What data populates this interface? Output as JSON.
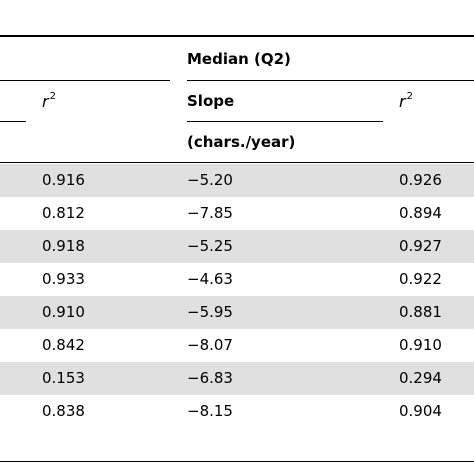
{
  "table": {
    "group_header": "Median (Q2)",
    "col_r2_left": "r",
    "col_slope": "Slope",
    "col_r2_right": "r",
    "r2_exponent": "2",
    "slope_units": "(chars./year)",
    "rows": [
      {
        "r2_a": "0.916",
        "slope": "−5.20",
        "r2_b": "0.926"
      },
      {
        "r2_a": "0.812",
        "slope": "−7.85",
        "r2_b": "0.894"
      },
      {
        "r2_a": "0.918",
        "slope": "−5.25",
        "r2_b": "0.927"
      },
      {
        "r2_a": "0.933",
        "slope": "−4.63",
        "r2_b": "0.922"
      },
      {
        "r2_a": "0.910",
        "slope": "−5.95",
        "r2_b": "0.881"
      },
      {
        "r2_a": "0.842",
        "slope": "−8.07",
        "r2_b": "0.910"
      },
      {
        "r2_a": "0.153",
        "slope": "−6.83",
        "r2_b": "0.294"
      },
      {
        "r2_a": "0.838",
        "slope": "−8.15",
        "r2_b": "0.904"
      }
    ]
  }
}
